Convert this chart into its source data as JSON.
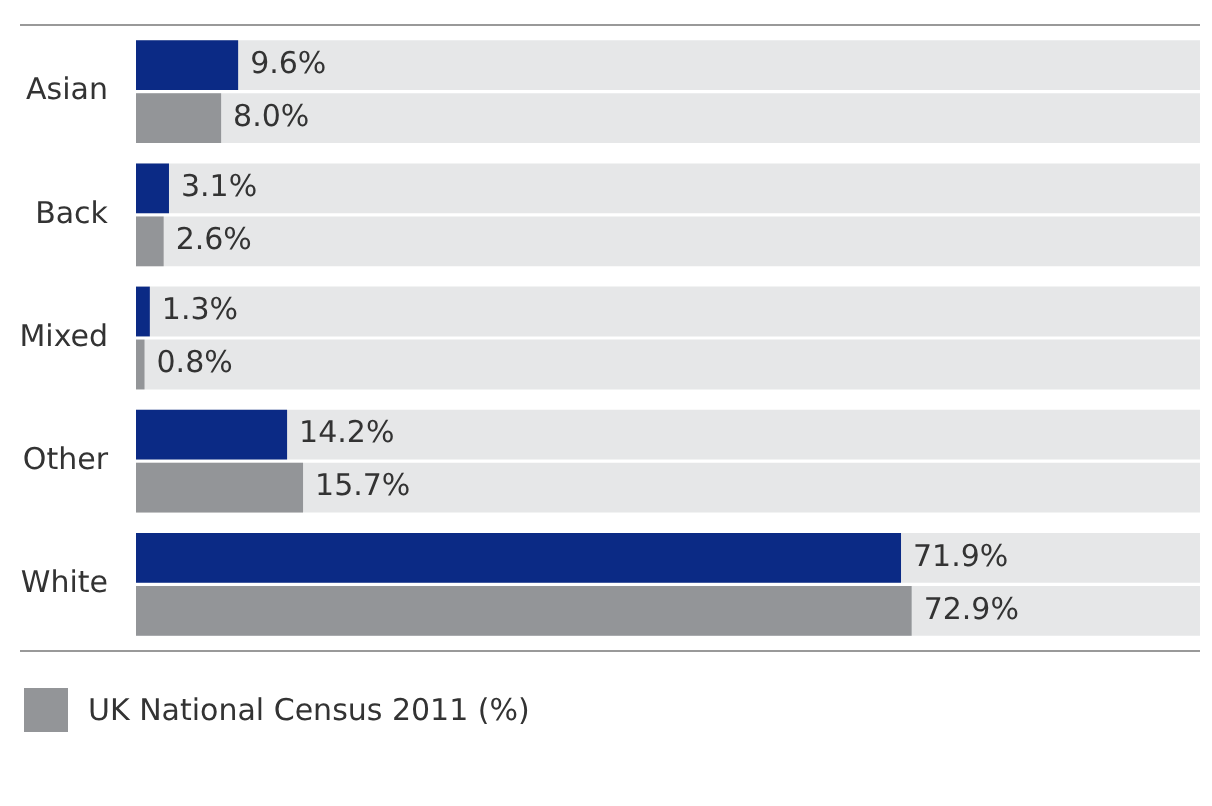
{
  "chart_data": {
    "type": "bar",
    "orientation": "horizontal",
    "categories": [
      "Asian",
      "Back",
      "Mixed",
      "Other",
      "White"
    ],
    "series": [
      {
        "color": "#0b2a85",
        "values": [
          9.6,
          3.1,
          1.3,
          14.2,
          71.9
        ],
        "value_labels": [
          "9.6%",
          "3.1%",
          "1.3%",
          "14.2%",
          "71.9%"
        ]
      },
      {
        "name": "UK National Census 2011 (%)",
        "color": "#939598",
        "values": [
          8.0,
          2.6,
          0.8,
          15.7,
          72.9
        ],
        "value_labels": [
          "8.0%",
          "2.6%",
          "0.8%",
          "15.7%",
          "72.9%"
        ]
      }
    ],
    "xlim": [
      0,
      100
    ],
    "tick_labels": "y",
    "legend": "bottom left"
  }
}
